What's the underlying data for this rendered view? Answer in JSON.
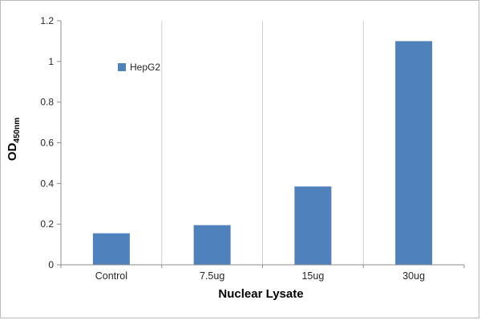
{
  "chart_data": {
    "type": "bar",
    "categories": [
      "Control",
      "7.5ug",
      "15ug",
      "30ug"
    ],
    "values": [
      0.155,
      0.195,
      0.385,
      1.1
    ],
    "series_name": "HepG2",
    "title": "",
    "xlabel": "Nuclear Lysate",
    "ylabel_main": "OD",
    "ylabel_sub": "450nm",
    "ylim": [
      0,
      1.2
    ],
    "ytick_step": 0.2,
    "ytick_labels": [
      "0",
      "0.2",
      "0.4",
      "0.6",
      "0.8",
      "1",
      "1.2"
    ],
    "legend_position": "upper-left-inside",
    "grid": "vertical-category-separators",
    "bar_color": "#4f81bd",
    "axis_color": "#8c8c8c",
    "separator_color": "#cfcfcf",
    "tick_text_color": "#262626"
  }
}
